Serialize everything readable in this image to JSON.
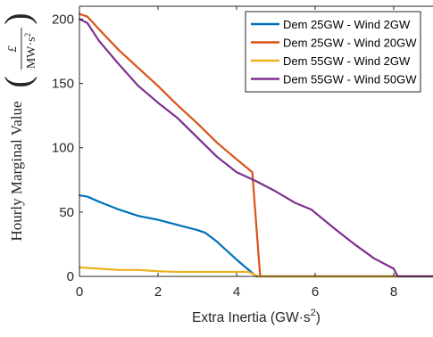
{
  "chart_data": {
    "type": "line",
    "xlabel_main": "Extra Inertia (GW·s",
    "xlabel_sup": "2",
    "xlabel_close": ")",
    "ylabel_main": "Hourly Marginal Value",
    "ylabel_unit": {
      "numerator": "£",
      "denominator_main": "MW·s",
      "denominator_sup": "2"
    },
    "xlim": [
      0,
      9
    ],
    "ylim": [
      0,
      210
    ],
    "xticks": [
      "0",
      "2",
      "4",
      "6",
      "8"
    ],
    "yticks": [
      "0",
      "50",
      "100",
      "150",
      "200"
    ],
    "grid": false,
    "legend_position": "top-right",
    "series": [
      {
        "name": "Dem 25GW - Wind 2GW",
        "color": "#0072BD",
        "points": [
          [
            0,
            63
          ],
          [
            0.2,
            62
          ],
          [
            0.5,
            58
          ],
          [
            1.0,
            52
          ],
          [
            1.5,
            47
          ],
          [
            2.0,
            44
          ],
          [
            2.5,
            40
          ],
          [
            3.0,
            36
          ],
          [
            3.2,
            34
          ],
          [
            3.5,
            27
          ],
          [
            4.0,
            13
          ],
          [
            4.5,
            0
          ],
          [
            9,
            0
          ]
        ]
      },
      {
        "name": "Dem 25GW - Wind 20GW",
        "color": "#D95319",
        "points": [
          [
            0,
            204
          ],
          [
            0.2,
            202
          ],
          [
            0.5,
            192
          ],
          [
            1.0,
            176
          ],
          [
            1.5,
            162
          ],
          [
            2.0,
            148
          ],
          [
            2.5,
            133
          ],
          [
            3.0,
            119
          ],
          [
            3.5,
            104
          ],
          [
            4.0,
            91
          ],
          [
            4.4,
            81
          ],
          [
            4.6,
            0
          ],
          [
            9,
            0
          ]
        ]
      },
      {
        "name": "Dem 55GW - Wind 2GW",
        "color": "#EDB120",
        "points": [
          [
            0,
            7
          ],
          [
            0.5,
            6
          ],
          [
            1.0,
            5
          ],
          [
            1.5,
            5
          ],
          [
            2.0,
            4
          ],
          [
            2.5,
            3.5
          ],
          [
            3.0,
            3.5
          ],
          [
            3.5,
            3.5
          ],
          [
            4.0,
            3.5
          ],
          [
            4.3,
            3.5
          ],
          [
            4.55,
            0
          ],
          [
            9,
            0
          ]
        ]
      },
      {
        "name": "Dem 55GW - Wind 50GW",
        "color": "#7E2F8E",
        "points": [
          [
            0,
            200
          ],
          [
            0.2,
            197
          ],
          [
            0.5,
            183
          ],
          [
            1.0,
            165
          ],
          [
            1.5,
            148
          ],
          [
            2.0,
            135
          ],
          [
            2.5,
            123
          ],
          [
            3.0,
            108
          ],
          [
            3.5,
            93
          ],
          [
            4.0,
            81
          ],
          [
            4.5,
            74
          ],
          [
            5.0,
            66
          ],
          [
            5.5,
            57
          ],
          [
            5.9,
            52
          ],
          [
            6.5,
            37
          ],
          [
            7.0,
            25
          ],
          [
            7.5,
            14
          ],
          [
            8.0,
            6
          ],
          [
            8.1,
            0
          ],
          [
            9,
            0
          ]
        ]
      }
    ]
  }
}
